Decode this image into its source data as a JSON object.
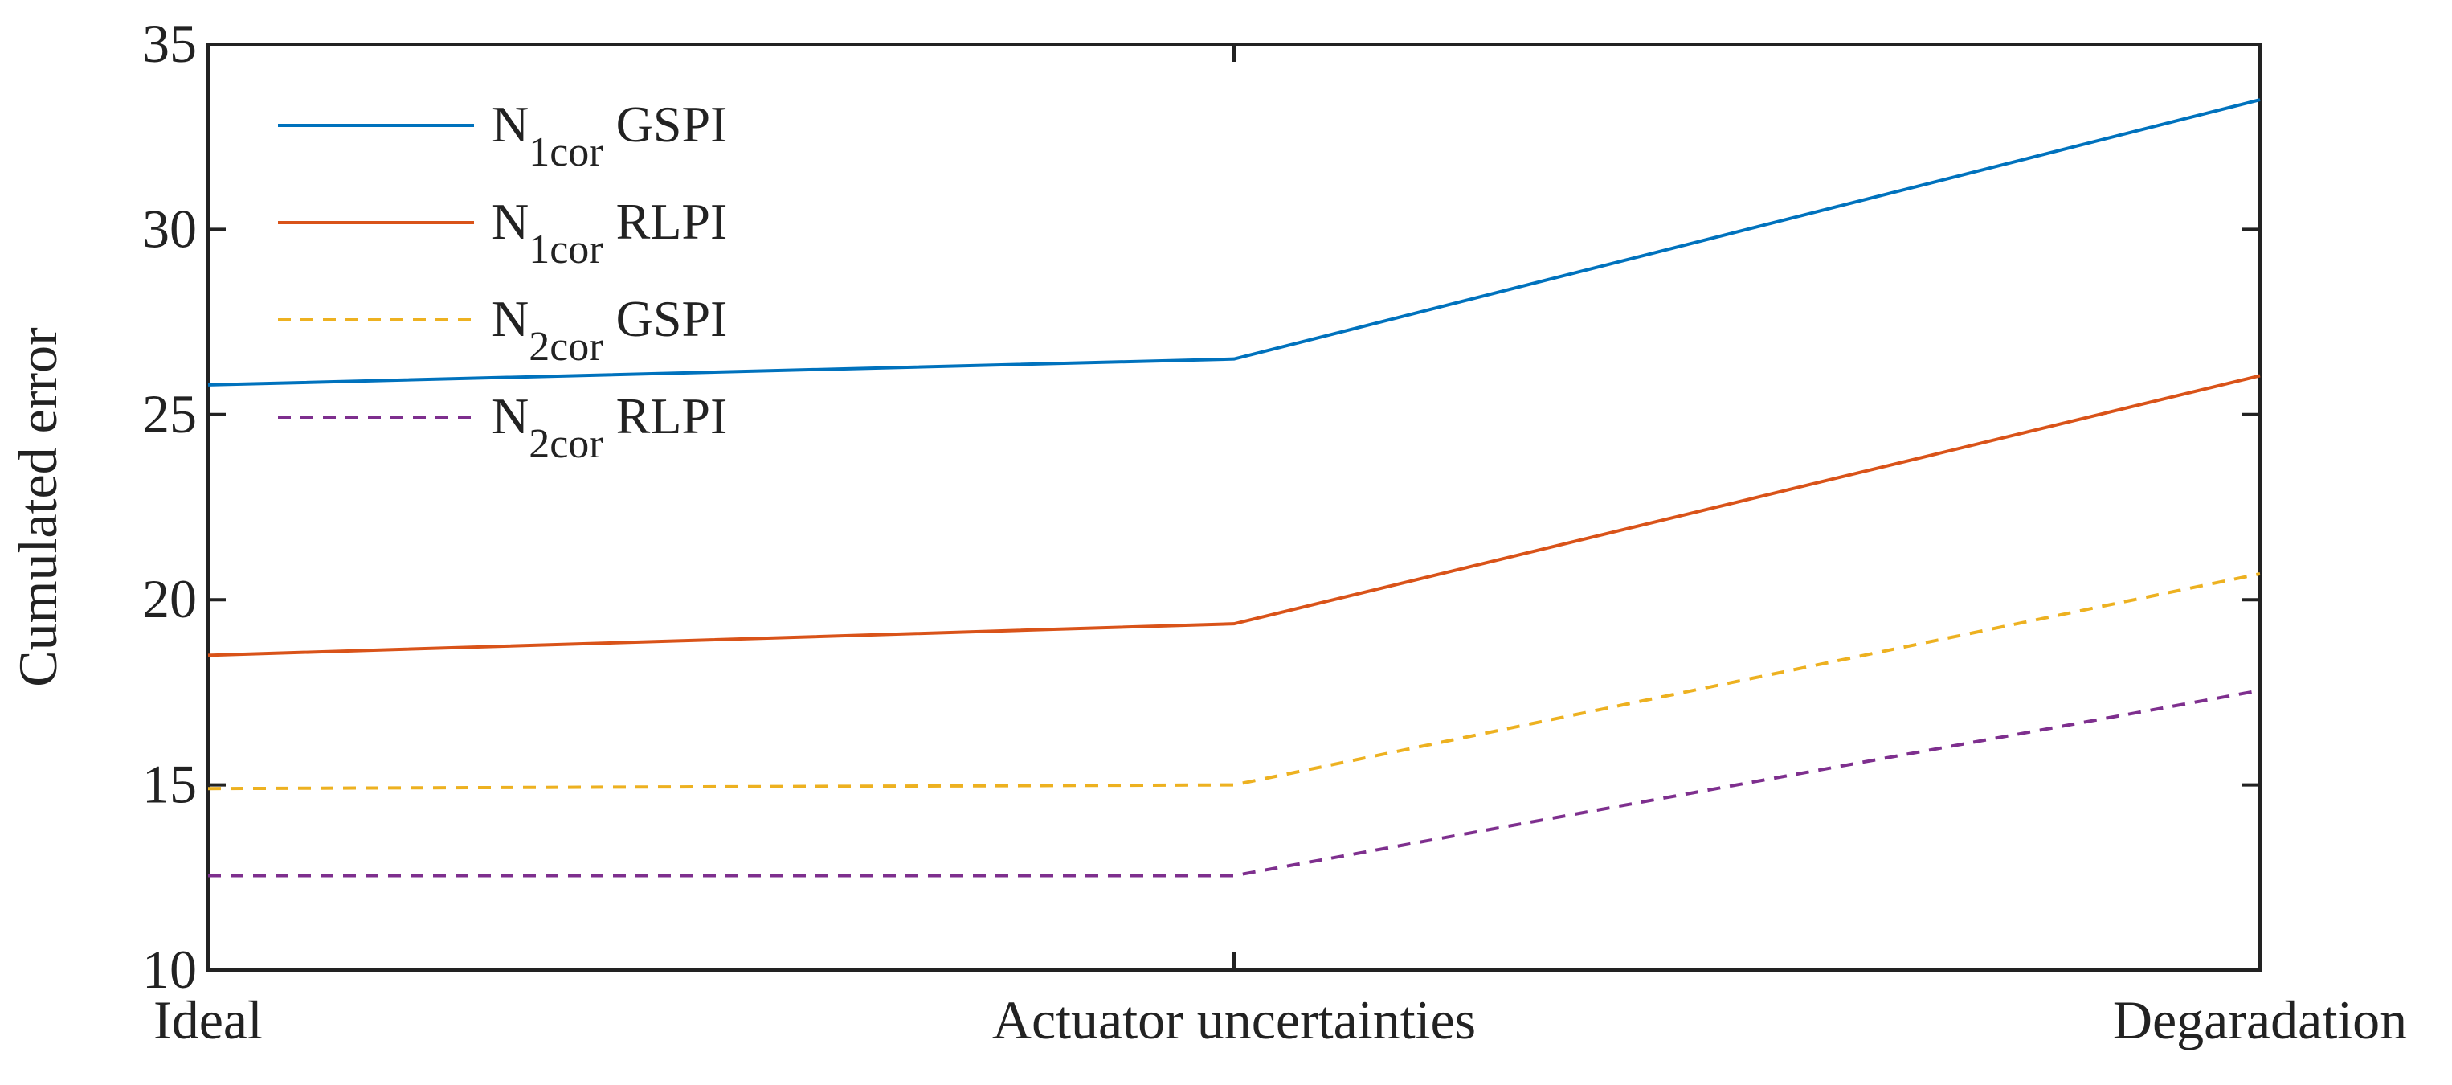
{
  "chart_data": {
    "type": "line",
    "y_label": "Cumulated error",
    "categories": [
      "Ideal",
      "Actuator uncertainties",
      "Degaradation"
    ],
    "series": [
      {
        "name": "N1cor GSPI",
        "color": "#0072BD",
        "dash": false,
        "values": [
          25.8,
          26.5,
          33.5
        ]
      },
      {
        "name": "N1cor RLPI",
        "color": "#D95319",
        "dash": false,
        "values": [
          18.5,
          19.35,
          26.05
        ]
      },
      {
        "name": "N2cor GSPI",
        "color": "#EDB120",
        "dash": true,
        "values": [
          14.9,
          15.0,
          20.7
        ]
      },
      {
        "name": "N2cor RLPI",
        "color": "#7E2F8E",
        "dash": true,
        "values": [
          12.55,
          12.55,
          17.55
        ]
      }
    ],
    "ylim": [
      10,
      35
    ],
    "yticks": [
      10,
      15,
      20,
      25,
      30,
      35
    ],
    "legend": "upper left",
    "grid": false
  }
}
